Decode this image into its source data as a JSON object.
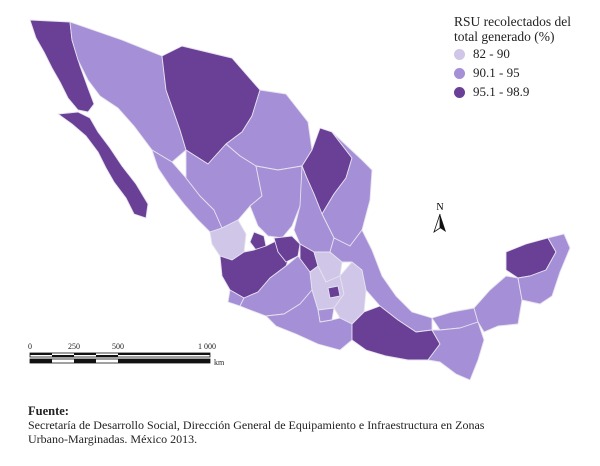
{
  "legend": {
    "title_line1": "RSU recolectados del",
    "title_line2": "total generado (%)",
    "classes": [
      {
        "label": "82 - 90",
        "color": "#cfc6e8"
      },
      {
        "label": "90.1 - 95",
        "color": "#a58fd6"
      },
      {
        "label": "95.1 - 98.9",
        "color": "#6a3f96"
      }
    ]
  },
  "north_arrow": {
    "label": "N"
  },
  "scale_bar": {
    "ticks": [
      "0",
      "250",
      "500",
      "1 000"
    ],
    "unit": "km"
  },
  "source": {
    "heading": "Fuente:",
    "line1": "Secretaría de Desarrollo Social, Dirección General de Equipamiento e Infraestructura en Zonas",
    "line2": "Urbano-Marginadas. México 2013."
  }
}
